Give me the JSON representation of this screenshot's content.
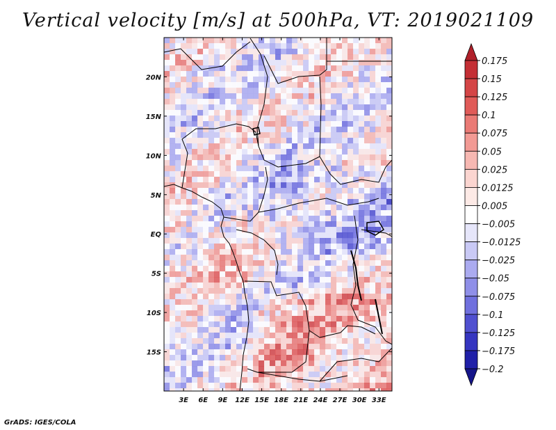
{
  "title": "Vertical velocity [m/s] at 500hPa, VT: 2019021109",
  "credit": "GrADS: IGES/COLA",
  "map": {
    "lon_range": [
      0,
      35
    ],
    "lat_range": [
      -20,
      25
    ],
    "lon_ticks": [
      "3E",
      "6E",
      "9E",
      "12E",
      "15E",
      "18E",
      "21E",
      "24E",
      "27E",
      "30E",
      "33E"
    ],
    "lat_ticks": [
      "20N",
      "15N",
      "10N",
      "5N",
      "EQ",
      "5S",
      "10S",
      "15S"
    ]
  },
  "colorbar": {
    "labels": [
      "0.175",
      "0.15",
      "0.125",
      "0.1",
      "0.075",
      "0.05",
      "0.025",
      "0.0125",
      "0.005",
      "−0.005",
      "−0.0125",
      "−0.025",
      "−0.05",
      "−0.075",
      "−0.1",
      "−0.125",
      "−0.175",
      "−0.2"
    ],
    "colors": [
      "#b0202a",
      "#c42f35",
      "#d44546",
      "#e05b58",
      "#ea7a75",
      "#f29a94",
      "#f7b8b2",
      "#fbd5d0",
      "#fdeae6",
      "#ffffff",
      "#e6e6fa",
      "#c9c9f5",
      "#ababf0",
      "#8f8fe8",
      "#7070de",
      "#5050d0",
      "#3535c0",
      "#2020a8",
      "#15158a"
    ]
  }
}
